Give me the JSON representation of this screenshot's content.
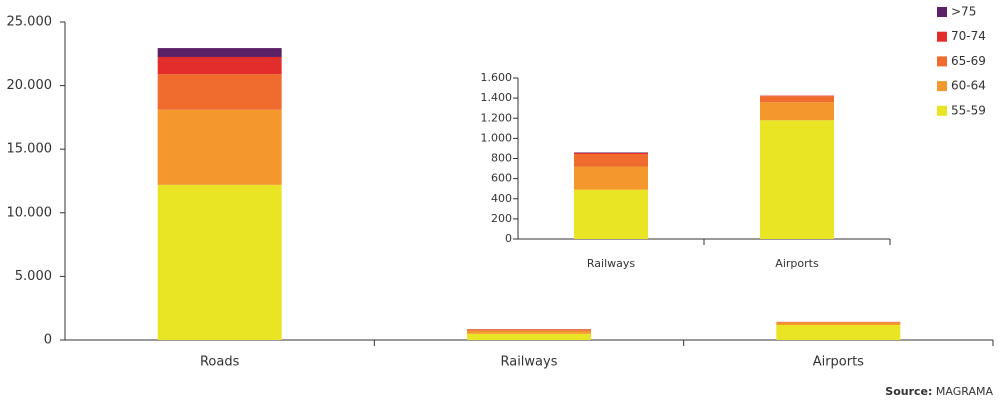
{
  "chart_data": [
    {
      "type": "bar",
      "stacked": true,
      "categories": [
        "Roads",
        "Railways",
        "Airports"
      ],
      "series": [
        {
          "name": "55-59",
          "color": "#e9e424",
          "values": [
            12200,
            490,
            1180
          ]
        },
        {
          "name": "60-64",
          "color": "#f4982e",
          "values": [
            5900,
            230,
            180
          ]
        },
        {
          "name": "65-69",
          "color": "#ef6c2e",
          "values": [
            2800,
            125,
            60
          ]
        },
        {
          "name": "70-74",
          "color": "#e32d2a",
          "values": [
            1350,
            10,
            5
          ]
        },
        {
          "name": ">75",
          "color": "#5b2166",
          "values": [
            700,
            5,
            0
          ]
        }
      ],
      "ylim": [
        0,
        25000
      ],
      "yticks": [
        0,
        {
          "value": 5000,
          "label": "5.000"
        },
        {
          "value": 10000,
          "label": "10.000"
        },
        {
          "value": 15000,
          "label": "15.000"
        },
        {
          "value": 20000,
          "label": "20.000"
        },
        {
          "value": 25000,
          "label": "25.000"
        }
      ],
      "legend": "upper right",
      "source_label": "Source:",
      "source": "MAGRAMA"
    },
    {
      "type": "bar",
      "stacked": true,
      "categories": [
        "Railways",
        "Airports"
      ],
      "series": [
        {
          "color": "#e9e424",
          "values": [
            490,
            1180
          ]
        },
        {
          "color": "#f4982e",
          "values": [
            230,
            180
          ]
        },
        {
          "color": "#ef6c2e",
          "values": [
            125,
            60
          ]
        },
        {
          "color": "#e32d2a",
          "values": [
            10,
            5
          ]
        },
        {
          "color": "#5b2166",
          "values": [
            5,
            0
          ]
        }
      ],
      "ylim": [
        0,
        1600
      ],
      "yticks": [
        0,
        200,
        400,
        600,
        800,
        {
          "value": 1000,
          "label": "1.000"
        },
        {
          "value": 1200,
          "label": "1.200"
        },
        {
          "value": 1400,
          "label": "1.400"
        },
        {
          "value": 1600,
          "label": "1.600"
        }
      ]
    }
  ]
}
